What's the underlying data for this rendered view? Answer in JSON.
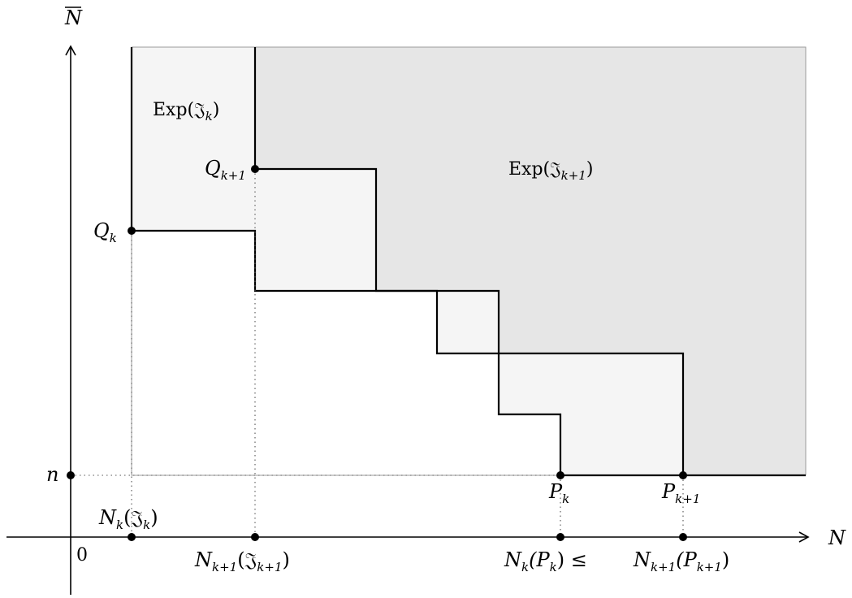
{
  "axes": {
    "x_label": "N",
    "y_label": "N",
    "origin_label": "0",
    "y_tick_label": "n"
  },
  "regions": {
    "exp_k": {
      "label": "Exp(𝔍",
      "sub": "k",
      "close": ")",
      "fill": "#f5f5f5"
    },
    "exp_k1": {
      "label": "Exp(𝔍",
      "sub": "k+1",
      "close": ")",
      "fill": "#e6e6e6"
    }
  },
  "points": {
    "Q_k": {
      "main": "Q",
      "sub": "k"
    },
    "Q_k1": {
      "main": "Q",
      "sub": "k+1"
    },
    "P_k": {
      "main": "P",
      "sub": "k"
    },
    "P_k1": {
      "main": "P",
      "sub": "k+1"
    }
  },
  "x_axis_labels": {
    "N_k_J_k": {
      "main": "N",
      "sub": "k",
      "arg": "(𝔍",
      "arg_sub": "k",
      "close": ")"
    },
    "N_k1_J_k1": {
      "main": "N",
      "sub": "k+1",
      "arg": "(𝔍",
      "arg_sub": "k+1",
      "close": ")"
    },
    "N_k_P_k": {
      "main": "N",
      "sub": "k",
      "arg": "(P",
      "arg_sub": "k",
      "close": ") ≤"
    },
    "N_k1_P_k1": {
      "main": "N",
      "sub": "k+1",
      "arg": "(P",
      "arg_sub": "k+1",
      "close": ")"
    }
  }
}
